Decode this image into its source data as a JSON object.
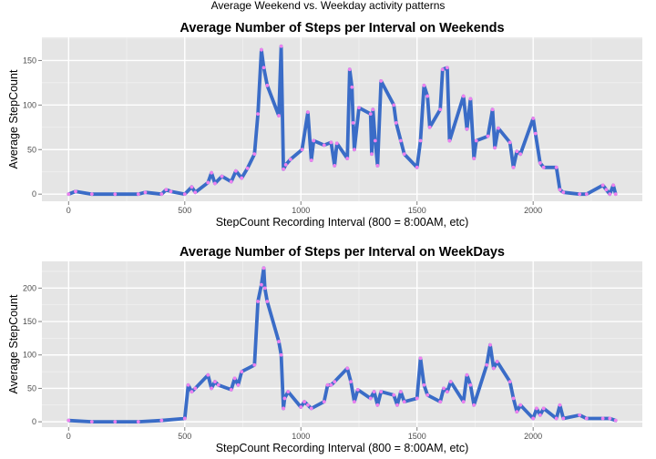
{
  "figure": {
    "title": "Average Weekend vs. Weekday activity patterns"
  },
  "colors": {
    "panel_bg": "#e5e5e5",
    "grid_major": "#ffffff",
    "grid_minor": "#f2f2f2",
    "line": "#3a6cc7",
    "points": "#ee82ee",
    "tick_mark": "#7f7f7f"
  },
  "chart_data": [
    {
      "type": "line",
      "title": "Average Number of Steps per Interval on Weekends",
      "xlabel": "StepCount Recording Interval (800 = 8:00AM, etc)",
      "ylabel": "Average StepCount",
      "xlim": [
        -115,
        2470
      ],
      "ylim": [
        -8,
        176
      ],
      "x_ticks": [
        0,
        500,
        1000,
        1500,
        2000
      ],
      "y_ticks": [
        0,
        50,
        100,
        150
      ],
      "grid": true,
      "series": [
        {
          "x": [
            0,
            30,
            100,
            200,
            300,
            330,
            400,
            420,
            440,
            500,
            530,
            545,
            600,
            615,
            630,
            660,
            700,
            720,
            745,
            770,
            800,
            815,
            830,
            840,
            855,
            905,
            915,
            925,
            935,
            955,
            1005,
            1030,
            1045,
            1055,
            1100,
            1130,
            1145,
            1155,
            1200,
            1210,
            1220,
            1225,
            1230,
            1250,
            1300,
            1305,
            1310,
            1320,
            1330,
            1345,
            1400,
            1410,
            1430,
            1445,
            1500,
            1515,
            1530,
            1545,
            1555,
            1600,
            1610,
            1630,
            1640,
            1700,
            1715,
            1730,
            1745,
            1755,
            1805,
            1825,
            1835,
            1850,
            1900,
            1915,
            1930,
            1945,
            2000,
            2010,
            2030,
            2045,
            2100,
            2115,
            2130,
            2200,
            2230,
            2300,
            2315,
            2330,
            2345,
            2355
          ],
          "values": [
            0,
            3,
            0,
            0,
            0,
            2,
            0,
            5,
            3,
            0,
            8,
            2,
            13,
            24,
            12,
            20,
            14,
            26,
            18,
            29,
            45,
            90,
            162,
            142,
            122,
            88,
            166,
            28,
            33,
            39,
            50,
            92,
            38,
            60,
            55,
            58,
            32,
            57,
            40,
            140,
            120,
            80,
            50,
            97,
            90,
            45,
            95,
            60,
            32,
            127,
            100,
            80,
            60,
            45,
            30,
            60,
            122,
            110,
            75,
            95,
            140,
            142,
            60,
            110,
            73,
            107,
            40,
            60,
            65,
            95,
            52,
            74,
            58,
            30,
            48,
            45,
            85,
            68,
            35,
            30,
            30,
            5,
            2,
            0,
            0,
            10,
            5,
            0,
            10,
            0
          ]
        }
      ]
    },
    {
      "type": "line",
      "title": "Average Number of Steps per Interval on WeekDays",
      "xlabel": "StepCount Recording Interval (800 = 8:00AM, etc)",
      "ylabel": "Average StepCount",
      "xlim": [
        -115,
        2470
      ],
      "ylim": [
        -8,
        240
      ],
      "x_ticks": [
        0,
        500,
        1000,
        1500,
        2000
      ],
      "y_ticks": [
        0,
        50,
        100,
        150,
        200
      ],
      "grid": true,
      "series": [
        {
          "x": [
            0,
            100,
            200,
            300,
            400,
            500,
            515,
            530,
            545,
            600,
            615,
            630,
            645,
            700,
            715,
            730,
            745,
            800,
            815,
            830,
            840,
            845,
            855,
            905,
            915,
            925,
            930,
            945,
            1000,
            1015,
            1030,
            1045,
            1100,
            1115,
            1130,
            1145,
            1200,
            1215,
            1230,
            1245,
            1300,
            1315,
            1330,
            1345,
            1400,
            1415,
            1430,
            1445,
            1500,
            1515,
            1530,
            1545,
            1600,
            1615,
            1630,
            1645,
            1700,
            1715,
            1730,
            1745,
            1800,
            1815,
            1830,
            1845,
            1900,
            1915,
            1930,
            1945,
            2000,
            2015,
            2030,
            2045,
            2100,
            2115,
            2130,
            2200,
            2230,
            2300,
            2330,
            2355
          ],
          "values": [
            2,
            0,
            0,
            0,
            2,
            5,
            55,
            45,
            50,
            70,
            50,
            60,
            55,
            48,
            65,
            55,
            75,
            85,
            180,
            205,
            230,
            200,
            180,
            120,
            100,
            20,
            35,
            45,
            22,
            30,
            25,
            20,
            30,
            55,
            55,
            60,
            80,
            60,
            30,
            48,
            35,
            45,
            25,
            45,
            40,
            25,
            45,
            30,
            35,
            95,
            55,
            40,
            30,
            50,
            45,
            60,
            30,
            70,
            55,
            25,
            85,
            115,
            80,
            90,
            60,
            35,
            15,
            25,
            5,
            20,
            10,
            20,
            5,
            25,
            5,
            10,
            5,
            5,
            5,
            2
          ]
        }
      ]
    }
  ]
}
